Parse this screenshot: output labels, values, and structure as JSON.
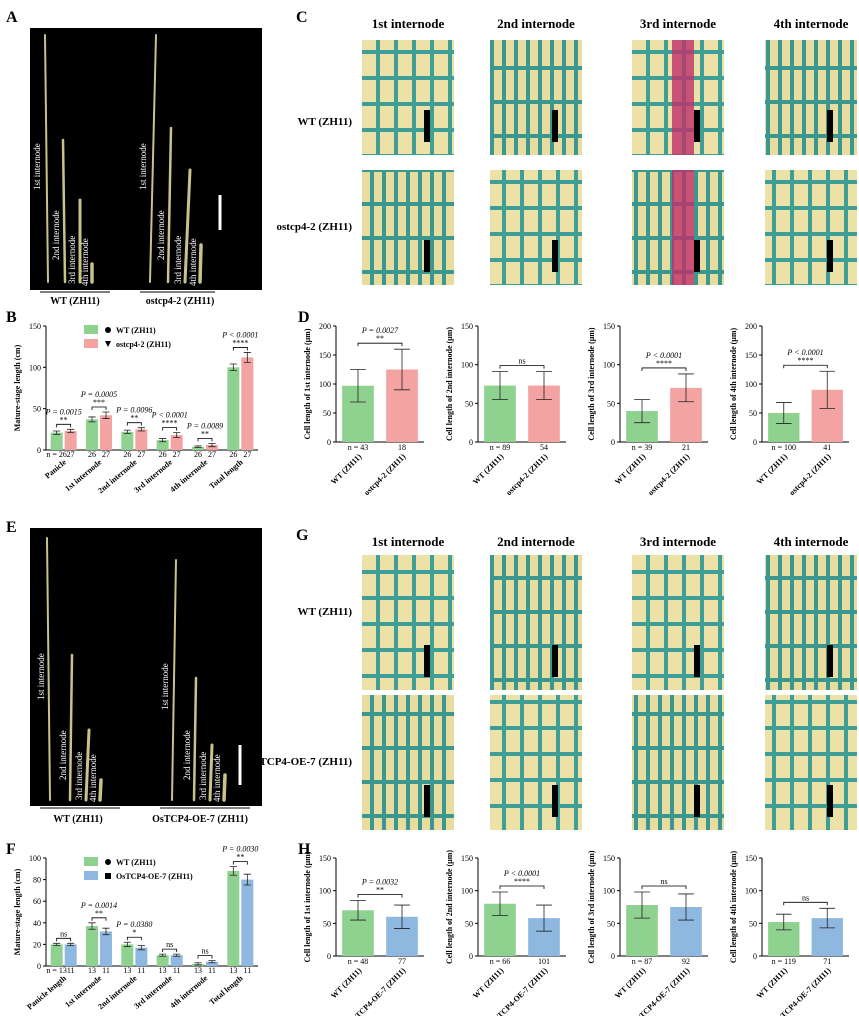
{
  "figure": {
    "A": {
      "letter": "A",
      "stem_labels": [
        "1st internode",
        "2nd internode",
        "3rd internode",
        "4th internode"
      ],
      "genotypes": [
        "WT (ZH11)",
        "ostcp4-2 (ZH11)"
      ]
    },
    "C": {
      "letter": "C",
      "columns": [
        "1st internode",
        "2nd internode",
        "3rd internode",
        "4th internode"
      ],
      "rows": [
        "WT (ZH11)",
        "ostcp4-2 (ZH11)"
      ]
    },
    "E": {
      "letter": "E",
      "stem_labels": [
        "1st internode",
        "2nd internode",
        "3rd internode",
        "4th internode"
      ],
      "genotypes": [
        "WT (ZH11)",
        "OsTCP4-OE-7 (ZH11)"
      ]
    },
    "G": {
      "letter": "G",
      "columns": [
        "1st internode",
        "2nd internode",
        "3rd internode",
        "4th internode"
      ],
      "rows": [
        "WT (ZH11)",
        "OsTCP4-OE-7 (ZH11)"
      ]
    }
  },
  "chart_data": [
    {
      "type": "grouped-bar",
      "panel": "B",
      "ylabel": "Mature-stage length (cm)",
      "categories": [
        "Panicle",
        "1st internode",
        "2nd internode",
        "3rd internode",
        "4th internode",
        "Total length"
      ],
      "series": [
        {
          "name": "WT (ZH11)",
          "color": "#8fd18f",
          "values": [
            21,
            37,
            22,
            12,
            4,
            100
          ],
          "errors": [
            2,
            3,
            2,
            2,
            1,
            4
          ]
        },
        {
          "name": "ostcp4-2 (ZH11)",
          "color": "#f4a3a3",
          "values": [
            23,
            42,
            25,
            18,
            6,
            112
          ],
          "errors": [
            2,
            4,
            2,
            3,
            2,
            6
          ]
        }
      ],
      "n_labels": [
        [
          "n = 26",
          "27"
        ],
        [
          "26",
          "27"
        ],
        [
          "26",
          "27"
        ],
        [
          "26",
          "27"
        ],
        [
          "26",
          "27"
        ],
        [
          "26",
          "27"
        ]
      ],
      "significance": [
        {
          "p": "P = 0.0015",
          "stars": "**"
        },
        {
          "p": "P = 0.0005",
          "stars": "***"
        },
        {
          "p": "P = 0.0096",
          "stars": "**"
        },
        {
          "p": "P < 0.0001",
          "stars": "****"
        },
        {
          "p": "P = 0.0089",
          "stars": "**"
        },
        {
          "p": "P < 0.0001",
          "stars": "****"
        }
      ],
      "ylim": [
        0,
        150
      ],
      "yticks": [
        0,
        50,
        100,
        150
      ]
    },
    {
      "type": "bar",
      "panel": "D",
      "ylabel": "Cell length of 1st internode (μm)",
      "categories": [
        "WT (ZH11)",
        "ostcp4-2 (ZH11)"
      ],
      "values": [
        97,
        125
      ],
      "errors": [
        28,
        35
      ],
      "colors": [
        "#8fd18f",
        "#f4a3a3"
      ],
      "n_labels": [
        "n = 43",
        "18"
      ],
      "significance": {
        "p": "P = 0.0027",
        "stars": "**"
      },
      "ylim": [
        0,
        200
      ],
      "yticks": [
        0,
        50,
        100,
        150,
        200
      ]
    },
    {
      "type": "bar",
      "ylabel": "Cell length of 2nd internode (μm)",
      "categories": [
        "WT (ZH11)",
        "ostcp4-2 (ZH11)"
      ],
      "values": [
        73,
        73
      ],
      "errors": [
        18,
        18
      ],
      "colors": [
        "#8fd18f",
        "#f4a3a3"
      ],
      "n_labels": [
        "n = 89",
        "54"
      ],
      "significance": {
        "stars": "ns"
      },
      "ylim": [
        0,
        150
      ],
      "yticks": [
        0,
        50,
        100,
        150
      ]
    },
    {
      "type": "bar",
      "ylabel": "Cell length of 3rd internode (μm)",
      "categories": [
        "WT (ZH11)",
        "ostcp4-2 (ZH11)"
      ],
      "values": [
        40,
        70
      ],
      "errors": [
        15,
        18
      ],
      "colors": [
        "#8fd18f",
        "#f4a3a3"
      ],
      "n_labels": [
        "n = 39",
        "21"
      ],
      "significance": {
        "p": "P < 0.0001",
        "stars": "****"
      },
      "ylim": [
        0,
        150
      ],
      "yticks": [
        0,
        50,
        100,
        150
      ]
    },
    {
      "type": "bar",
      "ylabel": "Cell length of 4th internode (μm)",
      "categories": [
        "WT (ZH11)",
        "ostcp4-2 (ZH11)"
      ],
      "values": [
        50,
        90
      ],
      "errors": [
        18,
        32
      ],
      "colors": [
        "#8fd18f",
        "#f4a3a3"
      ],
      "n_labels": [
        "n = 100",
        "41"
      ],
      "significance": {
        "p": "P < 0.0001",
        "stars": "****"
      },
      "ylim": [
        0,
        200
      ],
      "yticks": [
        0,
        50,
        100,
        150,
        200
      ]
    },
    {
      "type": "grouped-bar",
      "panel": "F",
      "ylabel": "Mature-stage length (cm)",
      "categories": [
        "Panicle length",
        "1st internode",
        "2nd internode",
        "3rd internode",
        "4th internode",
        "Total length"
      ],
      "series": [
        {
          "name": "WT (ZH11)",
          "color": "#8fd18f",
          "values": [
            20,
            37,
            20,
            10,
            2,
            88
          ],
          "errors": [
            1,
            3,
            2,
            1,
            1,
            4
          ]
        },
        {
          "name": "OsTCP4-OE-7 (ZH11)",
          "color": "#8fb8e0",
          "values": [
            20,
            32,
            17,
            10,
            4,
            80
          ],
          "errors": [
            1,
            3,
            2,
            1,
            1,
            5
          ]
        }
      ],
      "n_labels": [
        [
          "n = 13",
          "11"
        ],
        [
          "13",
          "11"
        ],
        [
          "13",
          "11"
        ],
        [
          "13",
          "11"
        ],
        [
          "13",
          "11"
        ],
        [
          "13",
          "11"
        ]
      ],
      "significance": [
        {
          "stars": "ns"
        },
        {
          "p": "P = 0.0014",
          "stars": "**"
        },
        {
          "p": "P = 0.0380",
          "stars": "*"
        },
        {
          "stars": "ns"
        },
        {
          "stars": "ns"
        },
        {
          "p": "P = 0.0030",
          "stars": "**"
        }
      ],
      "ylim": [
        0,
        100
      ],
      "yticks": [
        0,
        20,
        40,
        60,
        80,
        100
      ]
    },
    {
      "type": "bar",
      "panel": "H",
      "ylabel": "Cell length of 1st internode (μm)",
      "categories": [
        "WT (ZH11)",
        "OsTCP4-OE-7 (ZH11)"
      ],
      "values": [
        70,
        60
      ],
      "errors": [
        15,
        18
      ],
      "colors": [
        "#8fd18f",
        "#8fb8e0"
      ],
      "n_labels": [
        "n = 48",
        "77"
      ],
      "significance": {
        "p": "P = 0.0032",
        "stars": "**"
      },
      "ylim": [
        0,
        150
      ],
      "yticks": [
        0,
        50,
        100,
        150
      ]
    },
    {
      "type": "bar",
      "ylabel": "Cell length of 2nd internode (μm)",
      "categories": [
        "WT (ZH11)",
        "OsTCP4-OE-7 (ZH11)"
      ],
      "values": [
        80,
        58
      ],
      "errors": [
        18,
        20
      ],
      "colors": [
        "#8fd18f",
        "#8fb8e0"
      ],
      "n_labels": [
        "n = 66",
        "101"
      ],
      "significance": {
        "p": "P < 0.0001",
        "stars": "****"
      },
      "ylim": [
        0,
        150
      ],
      "yticks": [
        0,
        50,
        100,
        150
      ]
    },
    {
      "type": "bar",
      "ylabel": "Cell length of 3rd internode (μm)",
      "categories": [
        "WT (ZH11)",
        "OsTCP4-OE-7 (ZH11)"
      ],
      "values": [
        78,
        75
      ],
      "errors": [
        20,
        20
      ],
      "colors": [
        "#8fd18f",
        "#8fb8e0"
      ],
      "n_labels": [
        "n = 87",
        "92"
      ],
      "significance": {
        "stars": "ns"
      },
      "ylim": [
        0,
        150
      ],
      "yticks": [
        0,
        50,
        100,
        150
      ]
    },
    {
      "type": "bar",
      "ylabel": "Cell length of 4th internode (μm)",
      "categories": [
        "WT (ZH11)",
        "OsTCP4-OE-7 (ZH11)"
      ],
      "values": [
        52,
        58
      ],
      "errors": [
        12,
        15
      ],
      "colors": [
        "#8fd18f",
        "#8fb8e0"
      ],
      "n_labels": [
        "n = 119",
        "71"
      ],
      "significance": {
        "stars": "ns"
      },
      "ylim": [
        0,
        150
      ],
      "yticks": [
        0,
        50,
        100,
        150
      ]
    }
  ]
}
